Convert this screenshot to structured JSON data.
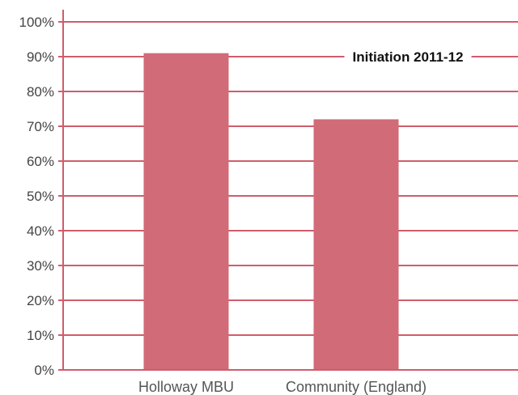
{
  "chart_data": {
    "type": "bar",
    "title": "Initiation 2011-12",
    "categories": [
      "Holloway MBU",
      "Community (England)"
    ],
    "values": [
      91,
      72
    ],
    "ylim": [
      0,
      100
    ],
    "ytick_step": 10,
    "ytick_labels": [
      "0%",
      "10%",
      "20%",
      "30%",
      "40%",
      "50%",
      "60%",
      "70%",
      "80%",
      "90%",
      "100%"
    ],
    "grid": true,
    "legend": "none",
    "xlabel": "",
    "ylabel": "",
    "colors": {
      "bar": "#D16B77",
      "grid": "#CF5D6B",
      "axis": "#CF5D6B"
    }
  }
}
